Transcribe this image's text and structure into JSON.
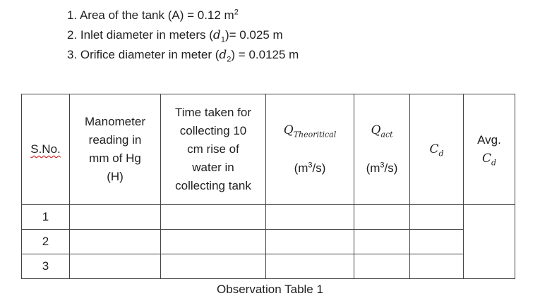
{
  "parameters": [
    {
      "prefix": "1. Area of the tank (A) = 0.12 m",
      "sup": "2",
      "suffix": ""
    },
    {
      "prefix": "2. Inlet diameter in meters (",
      "var": "d",
      "sub": "1",
      "suffix": ")= 0.025 m"
    },
    {
      "prefix": "3. Orifice diameter in meter (",
      "var": "d",
      "sub": "2",
      "suffix": ") = 0.0125 m"
    }
  ],
  "table": {
    "headers": {
      "sno": "S.No.",
      "manometer": [
        "Manometer",
        "reading in",
        "mm of Hg",
        "(H)"
      ],
      "time": [
        "Time taken for",
        "collecting 10",
        "cm rise of",
        "water in",
        "collecting tank"
      ],
      "q_theo_sym": "Q",
      "q_theo_sub": "Theoritical",
      "q_theo_unit_a": "(m",
      "q_theo_unit_sup": "3",
      "q_theo_unit_b": "/s)",
      "q_act_sym": "Q",
      "q_act_sub": "act",
      "q_act_unit_a": "(m",
      "q_act_unit_sup": "3",
      "q_act_unit_b": "/s)",
      "cd_sym": "C",
      "cd_sub": "d",
      "avg_label": "Avg.",
      "avg_cd_sym": "C",
      "avg_cd_sub": "d"
    },
    "rows": [
      "1",
      "2",
      "3"
    ]
  },
  "caption": "Observation Table 1"
}
